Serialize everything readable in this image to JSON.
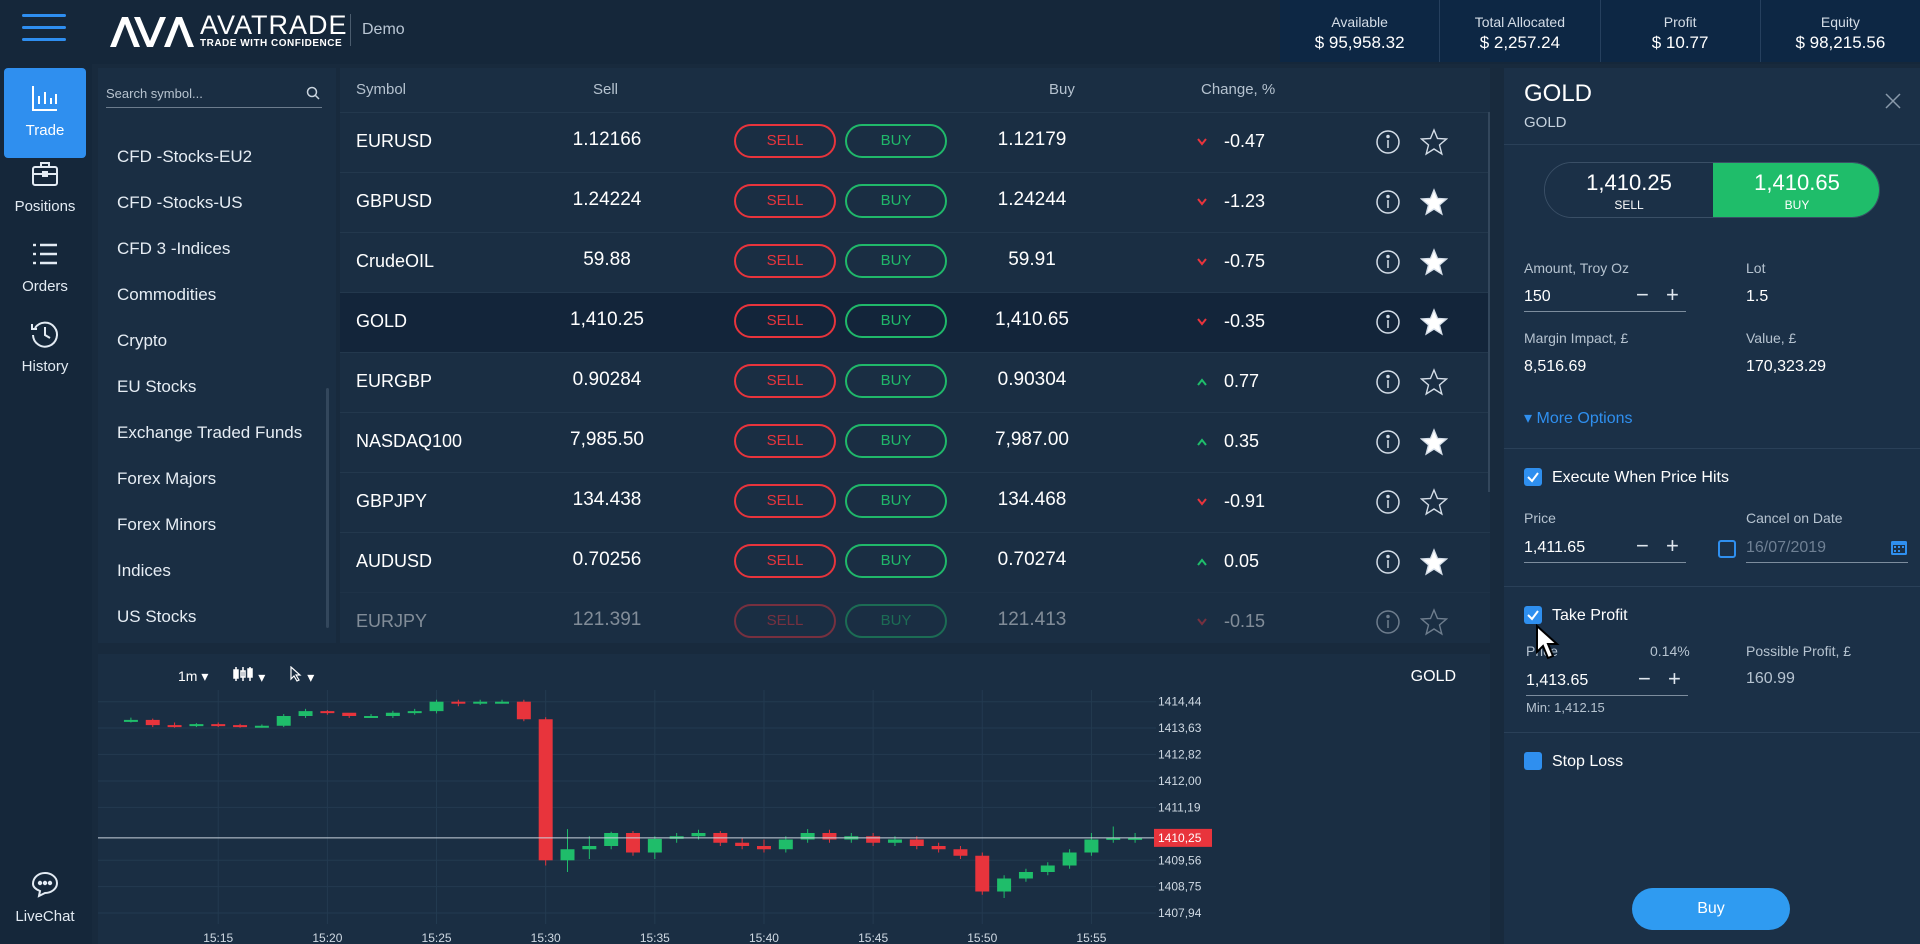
{
  "header": {
    "brand_name": "AVATRADE",
    "brand_tagline": "TRADE WITH CONFIDENCE",
    "mode_label": "Demo"
  },
  "account": [
    {
      "label": "Available",
      "value": "$ 95,958.32"
    },
    {
      "label": "Total Allocated",
      "value": "$ 2,257.24"
    },
    {
      "label": "Profit",
      "value": "$ 10.77"
    },
    {
      "label": "Equity",
      "value": "$ 98,215.56"
    }
  ],
  "nav": [
    {
      "label": "Trade",
      "icon": "chart-bars-icon",
      "active": true
    },
    {
      "label": "Positions",
      "icon": "briefcase-icon"
    },
    {
      "label": "Orders",
      "icon": "list-icon"
    },
    {
      "label": "History",
      "icon": "history-icon"
    },
    {
      "label": "LiveChat",
      "icon": "chat-icon"
    }
  ],
  "search": {
    "placeholder": "Search symbol..."
  },
  "categories": [
    "CFD -Stocks-EU2",
    "CFD -Stocks-US",
    "CFD 3 -Indices",
    "Commodities",
    "Crypto",
    "EU Stocks",
    "Exchange Traded Funds",
    "Forex Majors",
    "Forex Minors",
    "Indices",
    "US Stocks"
  ],
  "table": {
    "headers": {
      "symbol": "Symbol",
      "sell": "Sell",
      "buy": "Buy",
      "change": "Change, %"
    },
    "sell_button": "SELL",
    "buy_button": "BUY",
    "rows": [
      {
        "symbol": "EURUSD",
        "sell": "1.12166",
        "buy": "1.12179",
        "change": "-0.47",
        "dir": "down",
        "fav": false
      },
      {
        "symbol": "GBPUSD",
        "sell": "1.24224",
        "buy": "1.24244",
        "change": "-1.23",
        "dir": "down",
        "fav": true
      },
      {
        "symbol": "CrudeOIL",
        "sell": "59.88",
        "buy": "59.91",
        "change": "-0.75",
        "dir": "down",
        "fav": true
      },
      {
        "symbol": "GOLD",
        "sell": "1,410.25",
        "buy": "1,410.65",
        "change": "-0.35",
        "dir": "down",
        "fav": true,
        "selected": true
      },
      {
        "symbol": "EURGBP",
        "sell": "0.90284",
        "buy": "0.90304",
        "change": "0.77",
        "dir": "up",
        "fav": false
      },
      {
        "symbol": "NASDAQ100",
        "sell": "7,985.50",
        "buy": "7,987.00",
        "change": "0.35",
        "dir": "up",
        "fav": true
      },
      {
        "symbol": "GBPJPY",
        "sell": "134.438",
        "buy": "134.468",
        "change": "-0.91",
        "dir": "down",
        "fav": false
      },
      {
        "symbol": "AUDUSD",
        "sell": "0.70256",
        "buy": "0.70274",
        "change": "0.05",
        "dir": "up",
        "fav": true
      },
      {
        "symbol": "EURJPY",
        "sell": "121.391",
        "buy": "121.413",
        "change": "-0.15",
        "dir": "down",
        "fav": false
      }
    ]
  },
  "chart": {
    "timeframe": "1m",
    "symbol": "GOLD",
    "current_price": "1410,25",
    "y_ticks": [
      "1414,44",
      "1413,63",
      "1412,82",
      "1412,00",
      "1411,19",
      "1409,56",
      "1408,75",
      "1407,94"
    ],
    "x_ticks": [
      "15:15",
      "15:20",
      "15:25",
      "15:30",
      "15:35",
      "15:40",
      "15:45",
      "15:50",
      "15:55"
    ],
    "colors": {
      "up": "#1fbd6a",
      "down": "#e8343c"
    }
  },
  "chart_data": {
    "type": "candlestick",
    "title": "GOLD",
    "x": [
      "15:11",
      "15:12",
      "15:13",
      "15:14",
      "15:15",
      "15:16",
      "15:17",
      "15:18",
      "15:19",
      "15:20",
      "15:21",
      "15:22",
      "15:23",
      "15:24",
      "15:25",
      "15:26",
      "15:27",
      "15:28",
      "15:29",
      "15:30",
      "15:31",
      "15:32",
      "15:33",
      "15:34",
      "15:35",
      "15:36",
      "15:37",
      "15:38",
      "15:39",
      "15:40",
      "15:41",
      "15:42",
      "15:43",
      "15:44",
      "15:45",
      "15:46",
      "15:47",
      "15:48",
      "15:49",
      "15:50",
      "15:51",
      "15:52",
      "15:53",
      "15:54",
      "15:55",
      "15:56",
      "15:57"
    ],
    "open": [
      1413.85,
      1413.88,
      1413.72,
      1413.7,
      1413.75,
      1413.72,
      1413.7,
      1413.7,
      1414.0,
      1414.15,
      1414.1,
      1414.0,
      1414.0,
      1414.1,
      1414.15,
      1414.44,
      1414.4,
      1414.44,
      1414.44,
      1413.9,
      1409.56,
      1409.9,
      1410.0,
      1410.4,
      1409.8,
      1410.22,
      1410.3,
      1410.4,
      1410.1,
      1410.0,
      1409.9,
      1410.2,
      1410.4,
      1410.2,
      1410.3,
      1410.1,
      1410.2,
      1410.0,
      1409.9,
      1409.7,
      1408.6,
      1409.0,
      1409.2,
      1409.4,
      1409.8,
      1410.2,
      1410.25
    ],
    "close": [
      1413.88,
      1413.72,
      1413.7,
      1413.75,
      1413.72,
      1413.7,
      1413.7,
      1414.0,
      1414.15,
      1414.1,
      1414.0,
      1414.0,
      1414.1,
      1414.15,
      1414.44,
      1414.4,
      1414.44,
      1414.44,
      1413.9,
      1409.56,
      1409.9,
      1410.0,
      1410.4,
      1409.8,
      1410.22,
      1410.3,
      1410.4,
      1410.1,
      1410.0,
      1409.9,
      1410.2,
      1410.4,
      1410.2,
      1410.3,
      1410.1,
      1410.2,
      1410.0,
      1409.9,
      1409.7,
      1408.6,
      1409.0,
      1409.2,
      1409.4,
      1409.8,
      1410.2,
      1410.25,
      1410.25
    ],
    "high": [
      1413.95,
      1413.92,
      1413.8,
      1413.78,
      1413.8,
      1413.76,
      1413.74,
      1414.06,
      1414.22,
      1414.18,
      1414.08,
      1414.06,
      1414.16,
      1414.22,
      1414.5,
      1414.5,
      1414.5,
      1414.5,
      1414.5,
      1413.96,
      1410.52,
      1410.3,
      1410.44,
      1410.46,
      1410.3,
      1410.4,
      1410.5,
      1410.46,
      1410.24,
      1410.2,
      1410.3,
      1410.52,
      1410.5,
      1410.4,
      1410.4,
      1410.3,
      1410.3,
      1410.1,
      1410.0,
      1409.8,
      1409.1,
      1409.3,
      1409.5,
      1409.9,
      1410.4,
      1410.6,
      1410.4
    ],
    "low": [
      1413.8,
      1413.66,
      1413.64,
      1413.66,
      1413.66,
      1413.64,
      1413.64,
      1413.66,
      1413.94,
      1414.04,
      1413.94,
      1413.94,
      1413.94,
      1414.04,
      1414.08,
      1414.3,
      1414.34,
      1414.38,
      1413.84,
      1409.4,
      1409.2,
      1409.6,
      1409.9,
      1409.7,
      1409.6,
      1410.1,
      1410.2,
      1410.0,
      1409.9,
      1409.8,
      1409.8,
      1410.1,
      1410.1,
      1410.1,
      1410.0,
      1410.0,
      1409.9,
      1409.8,
      1409.6,
      1408.5,
      1408.4,
      1408.9,
      1409.1,
      1409.3,
      1409.7,
      1410.1,
      1410.1
    ],
    "ylim": [
      1407.6,
      1414.8
    ]
  },
  "order": {
    "title": "GOLD",
    "subtitle": "GOLD",
    "sell_price": "1,410.25",
    "sell_label": "SELL",
    "buy_price": "1,410.65",
    "buy_label": "BUY",
    "amount_label": "Amount, Troy Oz",
    "amount_value": "150",
    "lot_label": "Lot",
    "lot_value": "1.5",
    "margin_label": "Margin Impact, £",
    "margin_value": "8,516.69",
    "value_label": "Value, £",
    "value_value": "170,323.29",
    "more_options": "More Options",
    "execute_label": "Execute When Price Hits",
    "price_label": "Price",
    "execute_price": "1,411.65",
    "cancel_date_label": "Cancel on Date",
    "cancel_date_value": "16/07/2019",
    "take_profit_label": "Take Profit",
    "tp_price_label": "Price",
    "tp_percent": "0.14%",
    "tp_price": "1,413.65",
    "tp_min": "Min: 1,412.15",
    "possible_profit_label": "Possible Profit, £",
    "possible_profit_value": "160.99",
    "stop_loss_label": "Stop Loss",
    "submit_label": "Buy"
  }
}
